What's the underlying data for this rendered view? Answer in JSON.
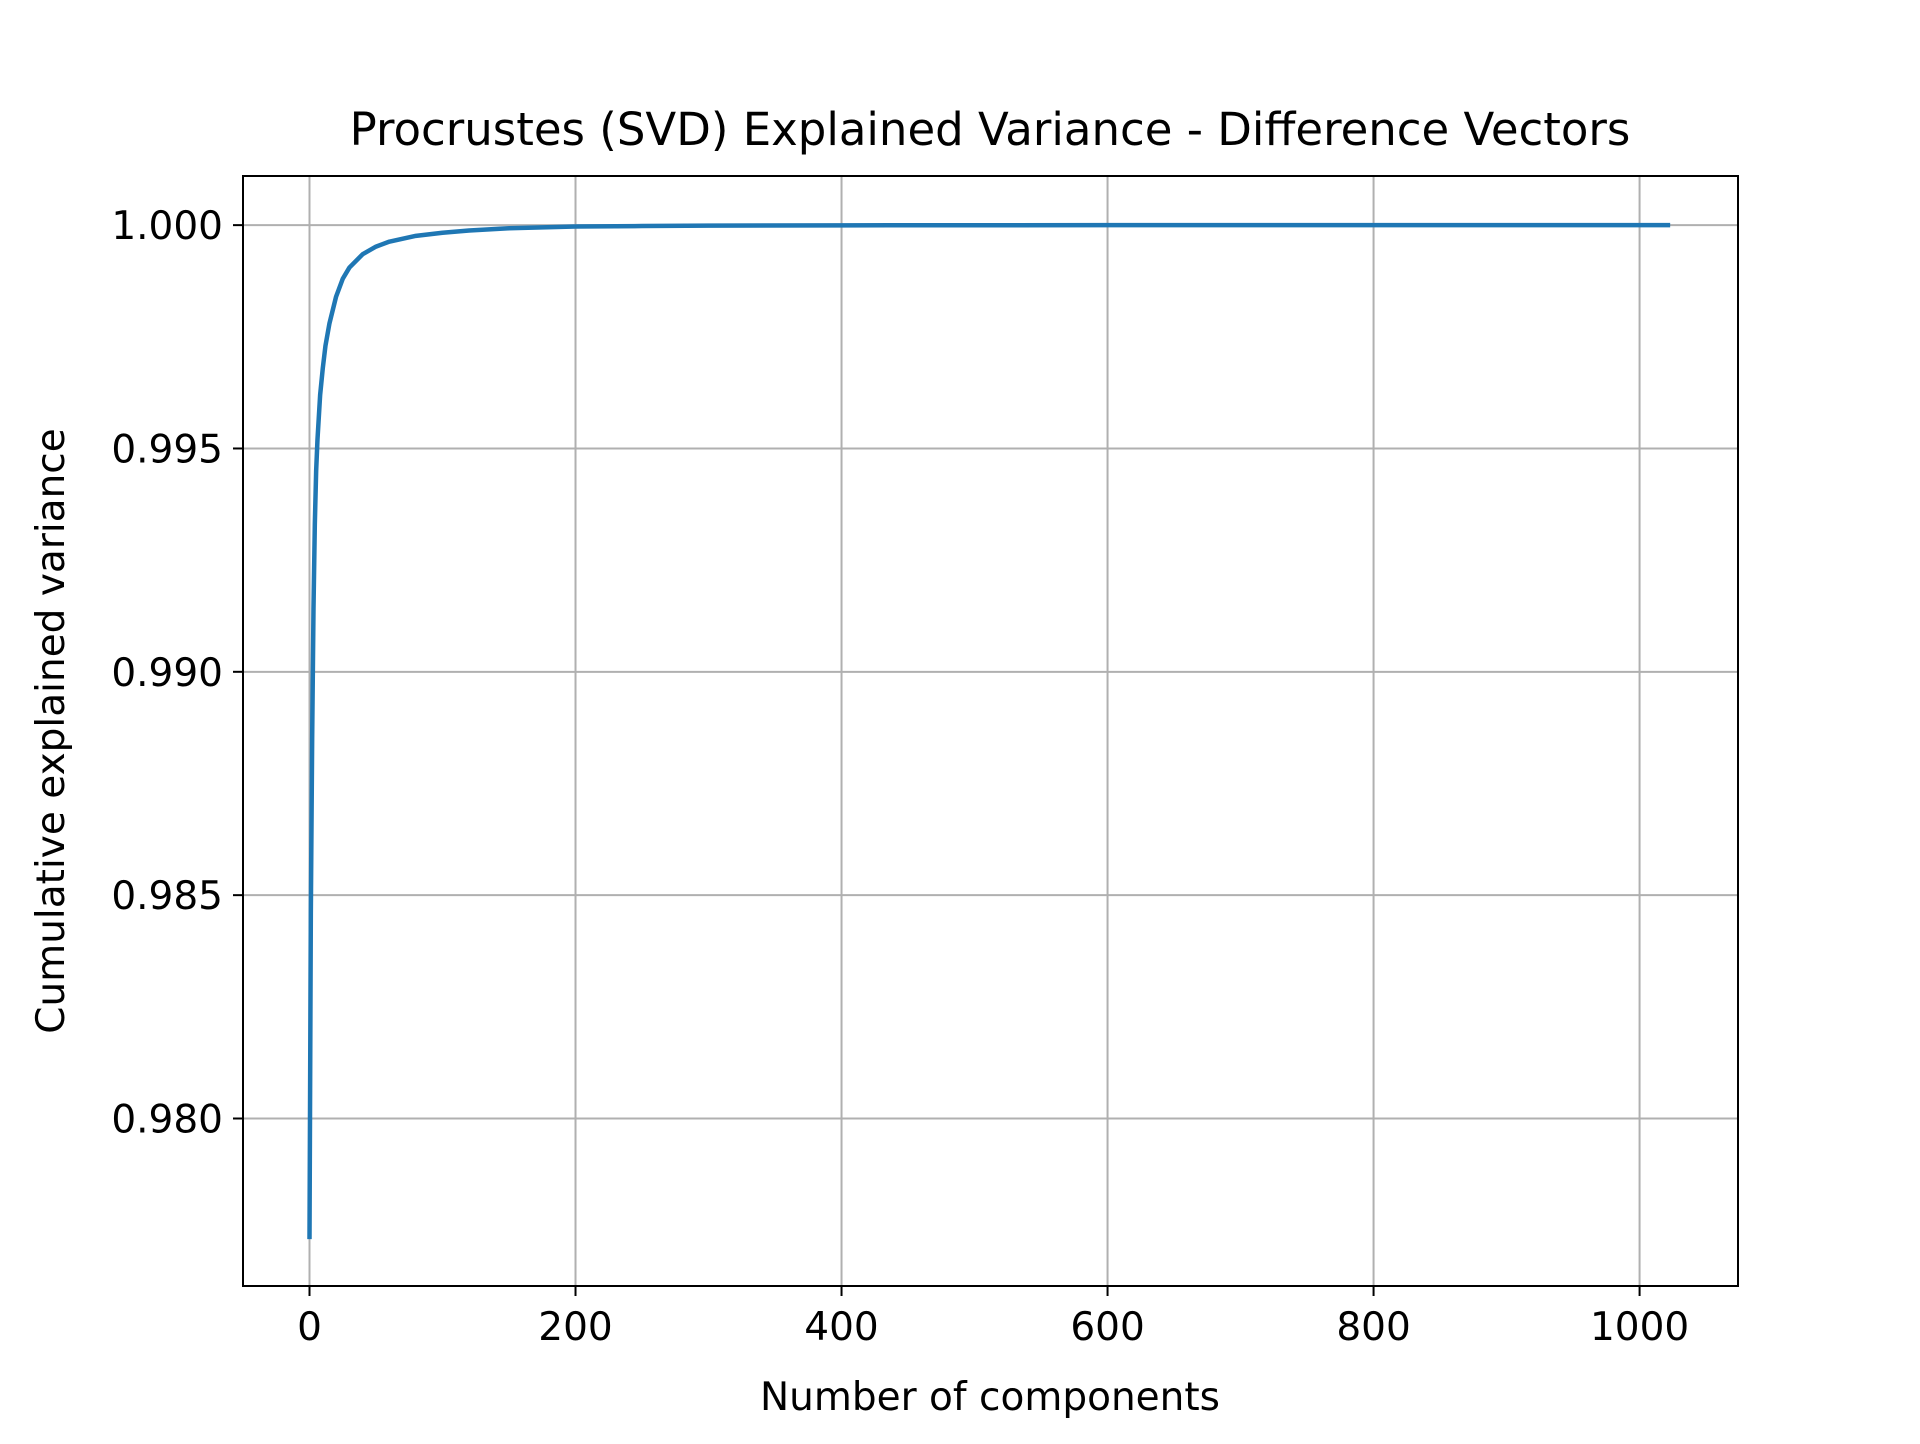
{
  "chart_data": {
    "type": "line",
    "title": "Procrustes (SVD) Explained Variance - Difference Vectors",
    "xlabel": "Number of components",
    "ylabel": "Cumulative explained variance",
    "xlim": [
      -50,
      1074
    ],
    "ylim": [
      0.97625,
      1.0011
    ],
    "xticks": [
      0,
      200,
      400,
      600,
      800,
      1000
    ],
    "xtick_labels": [
      "0",
      "200",
      "400",
      "600",
      "800",
      "1000"
    ],
    "yticks": [
      0.98,
      0.985,
      0.99,
      0.995,
      1.0
    ],
    "ytick_labels": [
      "0.980",
      "0.985",
      "0.990",
      "0.995",
      "1.000"
    ],
    "grid": true,
    "legend": "none",
    "colors": {
      "line": "#1f77b4",
      "grid": "#b0b0b0",
      "axes": "#000000"
    },
    "series": [
      {
        "x": [
          0,
          1,
          2,
          3,
          4,
          5,
          6,
          8,
          10,
          12,
          15,
          20,
          25,
          30,
          40,
          50,
          60,
          80,
          100,
          120,
          150,
          200,
          250,
          300,
          400,
          500,
          600,
          700,
          800,
          900,
          1000,
          1023
        ],
        "y": [
          0.9773,
          0.9846,
          0.9885,
          0.9914,
          0.9933,
          0.9945,
          0.9952,
          0.9962,
          0.9968,
          0.9973,
          0.9978,
          0.9984,
          0.9988,
          0.99905,
          0.99935,
          0.99952,
          0.99963,
          0.99976,
          0.99983,
          0.99988,
          0.99993,
          0.99997,
          0.99998,
          0.99999,
          0.999995,
          0.999998,
          0.999999,
          1.0,
          1.0,
          1.0,
          1.0,
          1.0
        ]
      }
    ]
  }
}
